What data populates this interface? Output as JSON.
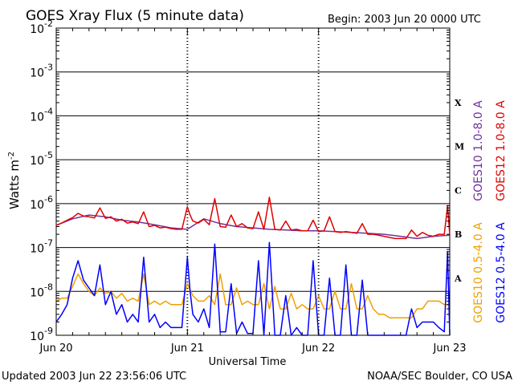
{
  "title": "GOES Xray Flux (5 minute data)",
  "begin_label": "Begin:  2003 Jun 20 0000 UTC",
  "updated_label": "Updated 2003 Jun 22 23:56:06 UTC",
  "credit_label": "NOAA/SEC Boulder, CO USA",
  "colors": {
    "goes10_long": "#7030a0",
    "goes12_long": "#e00000",
    "goes10_short": "#f0a000",
    "goes12_short": "#0000ff"
  },
  "chart_data": {
    "type": "line",
    "title": "GOES Xray Flux (5 minute data)",
    "xlabel": "Universal Time",
    "ylabel": "Watts m⁻²",
    "yscale": "log",
    "ylim": [
      1e-09,
      0.01
    ],
    "xlim": [
      "2003-06-20 00:00",
      "2003-06-23 00:00"
    ],
    "grid": true,
    "x_ticks": [
      "Jun 20",
      "Jun 21",
      "Jun 22",
      "Jun 23"
    ],
    "y_ticks": [
      {
        "value": 0.01,
        "base": "10",
        "exp": "-2"
      },
      {
        "value": 0.001,
        "base": "10",
        "exp": "-3"
      },
      {
        "value": 0.0001,
        "base": "10",
        "exp": "-4"
      },
      {
        "value": 1e-05,
        "base": "10",
        "exp": "-5"
      },
      {
        "value": 1e-06,
        "base": "10",
        "exp": "-6"
      },
      {
        "value": 1e-07,
        "base": "10",
        "exp": "-7"
      },
      {
        "value": 1e-08,
        "base": "10",
        "exp": "-8"
      },
      {
        "value": 1e-09,
        "base": "10",
        "exp": "-9"
      }
    ],
    "flare_classes": [
      {
        "label": "X",
        "value": 0.0002
      },
      {
        "label": "M",
        "value": 2e-05
      },
      {
        "label": "C",
        "value": 2e-06
      },
      {
        "label": "B",
        "value": 2e-07
      },
      {
        "label": "A",
        "value": 2e-08
      }
    ],
    "legend_right": [
      {
        "label": "GOES10 1.0-8.0 A",
        "color": "#7030a0"
      },
      {
        "label": "GOES12 1.0-8.0 A",
        "color": "#e00000"
      },
      {
        "label": "GOES10 0.5-4.0 A",
        "color": "#f0a000"
      },
      {
        "label": "GOES12 0.5-4.0 A",
        "color": "#0000ff"
      }
    ],
    "series": [
      {
        "name": "GOES10 1.0-8.0 A",
        "color": "#7030a0",
        "x_hours": [
          0,
          3,
          6,
          9,
          12,
          15,
          18,
          21,
          24,
          27,
          30,
          33,
          36,
          39,
          42,
          45,
          48,
          51,
          54,
          57,
          60,
          63,
          66,
          69,
          72
        ],
        "values": [
          3.2e-07,
          4.5e-07,
          5.5e-07,
          5e-07,
          4.2e-07,
          3.8e-07,
          3.3e-07,
          2.8e-07,
          2.6e-07,
          4.5e-07,
          3.5e-07,
          3e-07,
          2.8e-07,
          2.6e-07,
          2.5e-07,
          2.4e-07,
          2.4e-07,
          2.3e-07,
          2.2e-07,
          2.1e-07,
          2e-07,
          1.8e-07,
          1.6e-07,
          1.8e-07,
          1.9e-07
        ]
      },
      {
        "name": "GOES12 1.0-8.0 A",
        "color": "#e00000",
        "x_hours": [
          0,
          1,
          2,
          3,
          4,
          5,
          6,
          7,
          8,
          9,
          10,
          11,
          12,
          13,
          14,
          15,
          16,
          17,
          18,
          19,
          20,
          21,
          22,
          23,
          24,
          24.5,
          25,
          26,
          27,
          28,
          29,
          30,
          31,
          32,
          33,
          34,
          35,
          36,
          37,
          38,
          39,
          40,
          41,
          42,
          43,
          44,
          45,
          46,
          47,
          48,
          49,
          50,
          51,
          52,
          53,
          54,
          55,
          56,
          57,
          58,
          59,
          60,
          61,
          62,
          63,
          64,
          65,
          66,
          67,
          68,
          69,
          70,
          71,
          71.6,
          72
        ],
        "values": [
          3.2e-07,
          3.6e-07,
          4.2e-07,
          4.8e-07,
          6e-07,
          5.2e-07,
          5e-07,
          4.7e-07,
          8e-07,
          4.6e-07,
          5e-07,
          4e-07,
          4.4e-07,
          3.6e-07,
          3.8e-07,
          3.5e-07,
          6.5e-07,
          3e-07,
          3.2e-07,
          2.8e-07,
          2.9e-07,
          2.7e-07,
          2.6e-07,
          2.6e-07,
          8.5e-07,
          5.5e-07,
          4e-07,
          3.6e-07,
          4.4e-07,
          3.3e-07,
          1.3e-06,
          3e-07,
          2.9e-07,
          5.5e-07,
          3e-07,
          3.5e-07,
          2.8e-07,
          2.7e-07,
          6.5e-07,
          2.6e-07,
          1.4e-06,
          2.6e-07,
          2.5e-07,
          4e-07,
          2.5e-07,
          2.6e-07,
          2.4e-07,
          2.4e-07,
          4.2e-07,
          2.3e-07,
          2.4e-07,
          5e-07,
          2.3e-07,
          2.2e-07,
          2.3e-07,
          2.2e-07,
          2.1e-07,
          3.5e-07,
          2e-07,
          2e-07,
          1.9e-07,
          1.8e-07,
          1.7e-07,
          1.6e-07,
          1.6e-07,
          1.6e-07,
          2.5e-07,
          1.8e-07,
          2.2e-07,
          1.9e-07,
          1.8e-07,
          2e-07,
          2e-07,
          9e-07,
          1.9e-07
        ]
      },
      {
        "name": "GOES10 0.5-4.0 A",
        "color": "#f0a000",
        "x_hours": [
          0,
          1,
          2,
          3,
          4,
          5,
          6,
          7,
          8,
          9,
          10,
          11,
          12,
          13,
          14,
          15,
          16,
          17,
          18,
          19,
          20,
          21,
          22,
          23,
          24,
          25,
          26,
          27,
          28,
          29,
          30,
          31,
          32,
          33,
          34,
          35,
          36,
          37,
          38,
          39,
          40,
          41,
          42,
          43,
          44,
          45,
          46,
          47,
          48,
          49,
          50,
          51,
          52,
          53,
          54,
          55,
          56,
          57,
          58,
          59,
          60,
          61,
          62,
          63,
          64,
          65,
          66,
          67,
          68,
          69,
          70,
          71,
          72
        ],
        "values": [
          6e-09,
          7e-09,
          7e-09,
          1.3e-08,
          2.5e-08,
          1.5e-08,
          1e-08,
          8e-09,
          1.2e-08,
          9e-09,
          1e-08,
          7e-09,
          9e-09,
          6e-09,
          7e-09,
          6e-09,
          2.5e-08,
          5e-09,
          6e-09,
          5e-09,
          6e-09,
          5e-09,
          5e-09,
          5e-09,
          1.5e-08,
          8e-09,
          6e-09,
          6e-09,
          8e-09,
          5e-09,
          2.5e-08,
          5e-09,
          5e-09,
          1.2e-08,
          5e-09,
          6e-09,
          5e-09,
          5e-09,
          1.5e-08,
          4e-09,
          1.3e-08,
          4e-09,
          4e-09,
          9e-09,
          4e-09,
          5e-09,
          4e-09,
          4e-09,
          8e-09,
          4e-09,
          4e-09,
          1e-08,
          4e-09,
          4e-09,
          1.5e-08,
          4e-09,
          4e-09,
          8e-09,
          4e-09,
          3e-09,
          3e-09,
          2.5e-09,
          2.5e-09,
          2.5e-09,
          2.5e-09,
          2.5e-09,
          4e-09,
          4e-09,
          6e-09,
          6e-09,
          6e-09,
          5e-09,
          5e-09
        ]
      },
      {
        "name": "GOES12 0.5-4.0 A",
        "color": "#0000ff",
        "x_hours": [
          0,
          1,
          2,
          3,
          4,
          5,
          6,
          7,
          8,
          9,
          10,
          11,
          12,
          13,
          14,
          15,
          16,
          17,
          18,
          19,
          20,
          21,
          22,
          23,
          24,
          24.5,
          25,
          26,
          27,
          28,
          29,
          30,
          31,
          32,
          33,
          34,
          35,
          36,
          37,
          38,
          39,
          40,
          41,
          42,
          43,
          44,
          45,
          46,
          47,
          48,
          49,
          50,
          51,
          52,
          53,
          54,
          55,
          56,
          57,
          58,
          59,
          60,
          61,
          62,
          63,
          64,
          65,
          66,
          67,
          68,
          69,
          70,
          71,
          71.6,
          72
        ],
        "values": [
          2e-09,
          3e-09,
          5e-09,
          2e-08,
          5e-08,
          1.8e-08,
          1.2e-08,
          8e-09,
          4e-08,
          5e-09,
          1e-08,
          3e-09,
          5e-09,
          2e-09,
          3e-09,
          2e-09,
          6e-08,
          2e-09,
          3e-09,
          1.5e-09,
          2e-09,
          1.5e-09,
          1.5e-09,
          1.5e-09,
          6e-08,
          1e-08,
          3e-09,
          2e-09,
          4e-09,
          1.5e-09,
          1.2e-07,
          1.2e-09,
          1.2e-09,
          1.5e-08,
          1.1e-09,
          2e-09,
          1.1e-09,
          1.1e-09,
          5e-08,
          1e-09,
          1.3e-07,
          1e-09,
          1e-09,
          8e-09,
          1e-09,
          1.5e-09,
          1e-09,
          1e-09,
          5e-08,
          1e-09,
          1e-09,
          2e-08,
          1e-09,
          1e-09,
          4e-08,
          1e-09,
          1e-09,
          1.8e-08,
          1e-09,
          1e-09,
          1e-09,
          1e-09,
          1e-09,
          1e-09,
          1e-09,
          1e-09,
          4e-09,
          1.5e-09,
          2e-09,
          2e-09,
          2e-09,
          1.5e-09,
          1.2e-09,
          8e-08,
          1e-09
        ]
      }
    ]
  }
}
